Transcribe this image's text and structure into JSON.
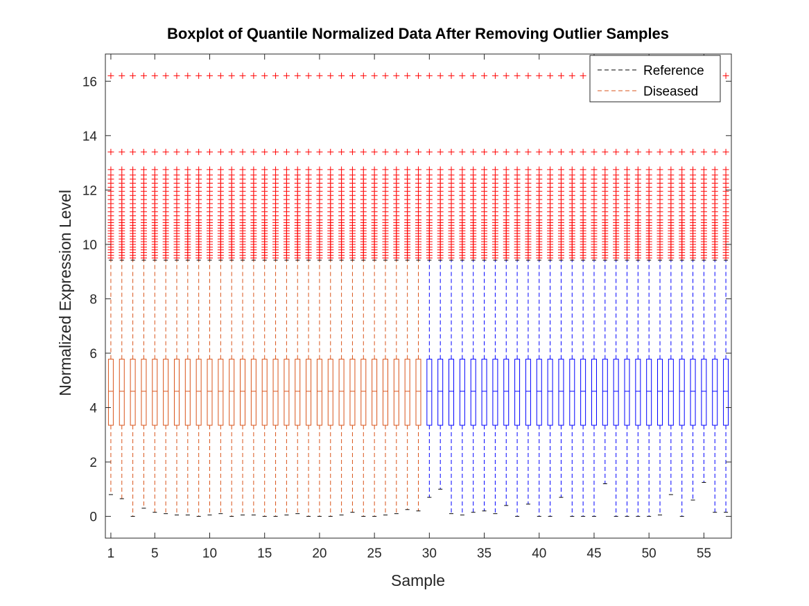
{
  "chart_data": {
    "type": "boxplot",
    "title": "Boxplot of Quantile Normalized Data After Removing Outlier Samples",
    "xlabel": "Sample",
    "ylabel": "Normalized Expression Level",
    "xlim": [
      0.5,
      57.5
    ],
    "ylim": [
      -0.8,
      17
    ],
    "xticks": [
      1,
      5,
      10,
      15,
      20,
      25,
      30,
      35,
      40,
      45,
      50,
      55
    ],
    "yticks": [
      0,
      2,
      4,
      6,
      8,
      10,
      12,
      14,
      16
    ],
    "legend": {
      "position": "top-right",
      "entries": [
        {
          "name": "Reference",
          "color": "#000000",
          "style": "dashed"
        },
        {
          "name": "Diseased",
          "color": "#D95319",
          "style": "dashed"
        }
      ]
    },
    "colors": {
      "diseased": "#D95319",
      "reference": "#0000FF",
      "outliers": "#FF0000"
    },
    "series": [
      {
        "name": "Diseased",
        "samples": [
          1,
          29
        ]
      },
      {
        "name": "Reference",
        "samples": [
          30,
          57
        ]
      }
    ],
    "box": {
      "q1": 3.35,
      "median": 4.6,
      "q3": 5.78,
      "upper_whisker": 9.42
    },
    "lower_whiskers": [
      0.8,
      0.65,
      0.0,
      0.3,
      0.15,
      0.1,
      0.05,
      0.05,
      0.0,
      0.05,
      0.1,
      0.0,
      0.05,
      0.05,
      0.0,
      0.0,
      0.05,
      0.1,
      0.0,
      0.0,
      0.0,
      0.05,
      0.15,
      0.0,
      0.0,
      0.05,
      0.1,
      0.25,
      0.2,
      0.7,
      1.0,
      0.1,
      0.05,
      0.15,
      0.2,
      0.1,
      0.4,
      0.0,
      0.45,
      0.0,
      0.0,
      0.7,
      0.0,
      0.0,
      0.0,
      1.2,
      0.0,
      0.0,
      0.0,
      0.0,
      0.05,
      0.8,
      0.0,
      0.6,
      1.25,
      0.15,
      0.15
    ],
    "outliers": [
      9.5,
      9.6,
      9.7,
      9.8,
      9.9,
      10.0,
      10.1,
      10.2,
      10.3,
      10.4,
      10.5,
      10.6,
      10.7,
      10.8,
      10.9,
      11.05,
      11.2,
      11.35,
      11.5,
      11.65,
      11.8,
      11.95,
      12.1,
      12.25,
      12.4,
      12.55,
      12.75,
      13.4,
      16.2
    ]
  }
}
